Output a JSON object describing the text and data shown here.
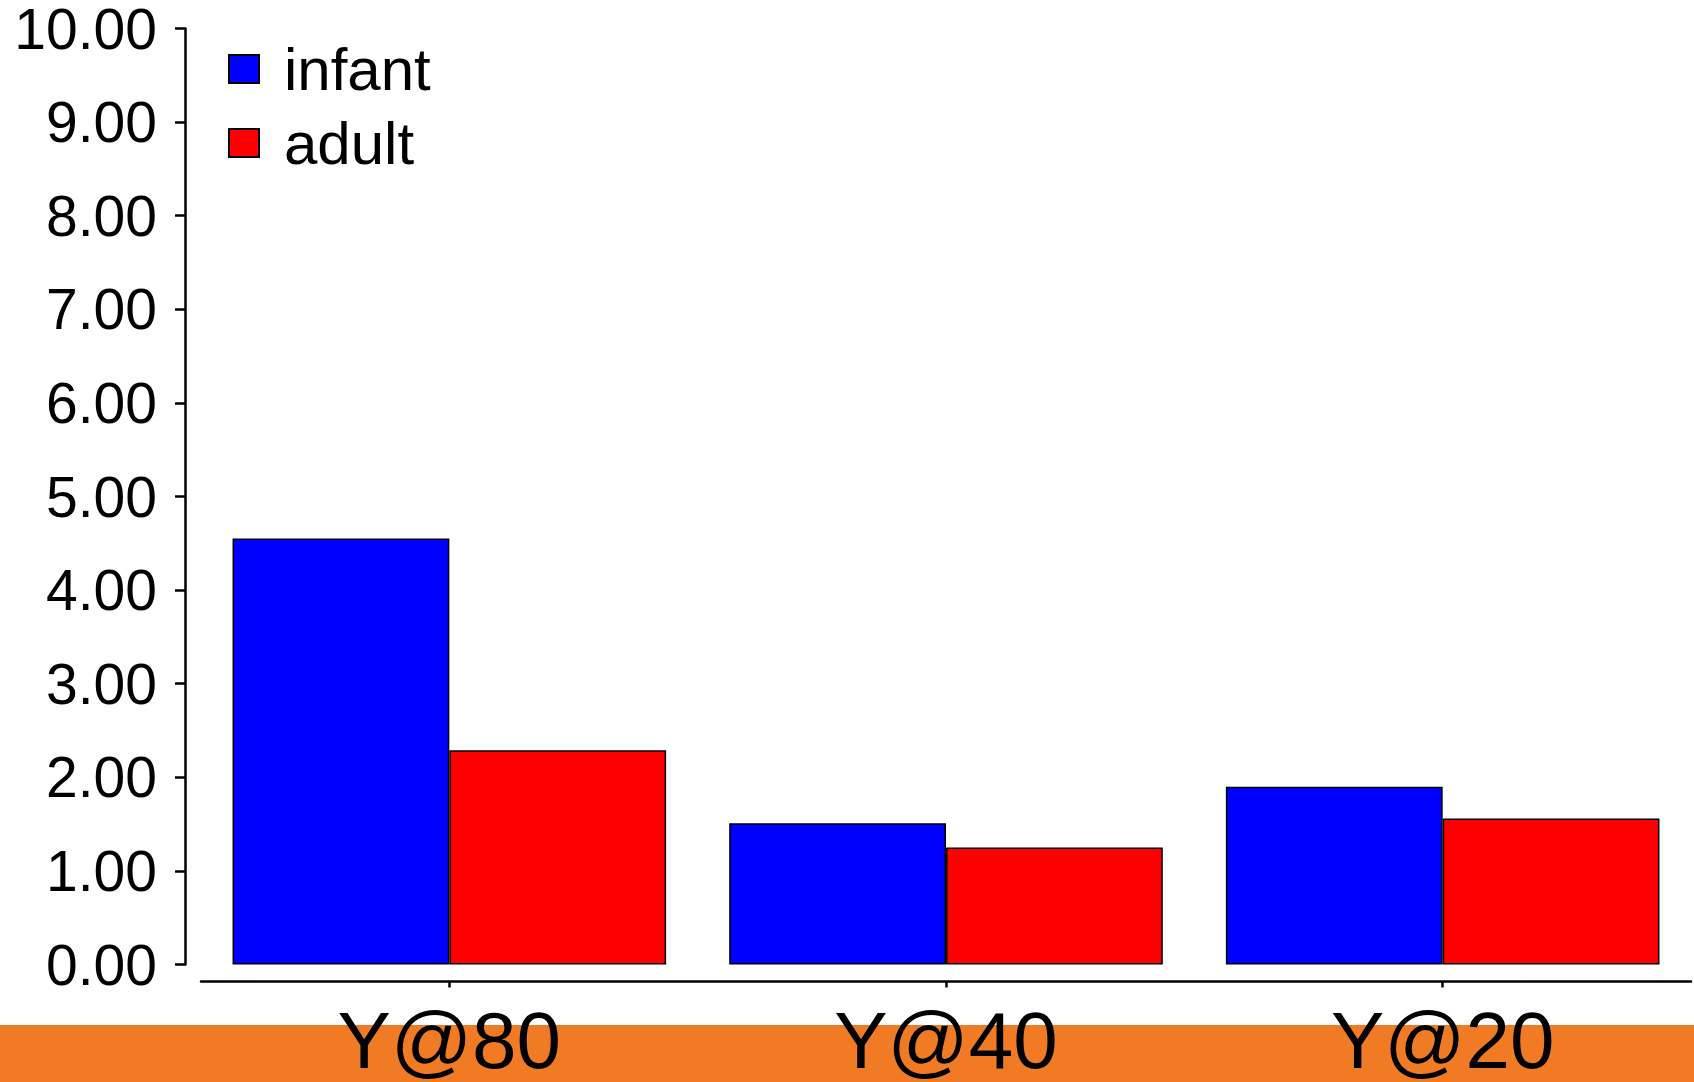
{
  "chart_data": {
    "type": "bar",
    "categories": [
      "Y@80",
      "Y@40",
      "Y@20"
    ],
    "series": [
      {
        "name": "infant",
        "color": "#0000ff",
        "values": [
          4.55,
          1.51,
          1.9
        ]
      },
      {
        "name": "adult",
        "color": "#ff0000",
        "values": [
          2.29,
          1.25,
          1.56
        ]
      }
    ],
    "ylim": [
      0,
      10
    ],
    "yticks": [
      {
        "value": 0,
        "label": "0.00"
      },
      {
        "value": 1,
        "label": "1.00"
      },
      {
        "value": 2,
        "label": "2.00"
      },
      {
        "value": 3,
        "label": "3.00"
      },
      {
        "value": 4,
        "label": "4.00"
      },
      {
        "value": 5,
        "label": "5.00"
      },
      {
        "value": 6,
        "label": "6.00"
      },
      {
        "value": 7,
        "label": "7.00"
      },
      {
        "value": 8,
        "label": "8.00"
      },
      {
        "value": 9,
        "label": "9.00"
      },
      {
        "value": 10,
        "label": "10.00"
      }
    ],
    "legend": "top left"
  }
}
